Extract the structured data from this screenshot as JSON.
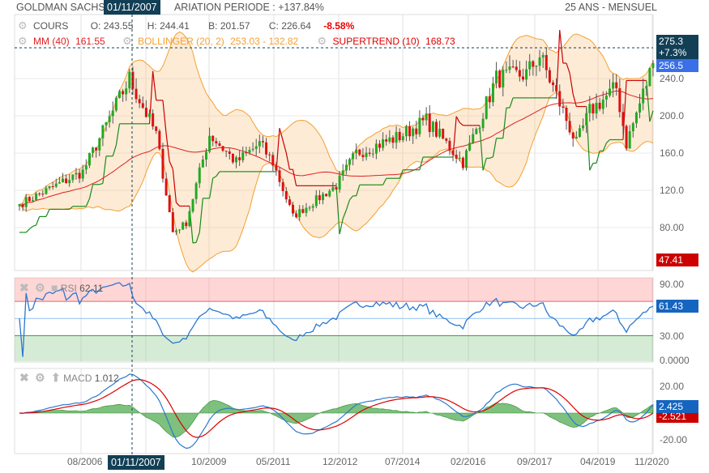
{
  "header": {
    "title_prefix": "GOLDMAN SACHS G",
    "title_suffix": "ARIATION PERIODE : +137.84%",
    "period": "25 ANS - MENSUEL",
    "crosshair_date": "01/11/2007"
  },
  "legend": {
    "cours": "COURS",
    "open": "O: 243.55",
    "high": "H: 244.41",
    "low": "B: 201.57",
    "close": "C: 226.64",
    "change": "-8.58%",
    "mm": "MM (40)",
    "mm_value": "161.55",
    "bollinger": "BOLLINGER (20, 2)",
    "bollinger_value": "253.03 - 132.82",
    "supertrend": "SUPERTREND (10)",
    "supertrend_value": "168.73"
  },
  "badges": {
    "crosshair_price": "275.3",
    "crosshair_pct": "+7.3%",
    "last_price": "256.5",
    "red_value": "47.41",
    "rsi_last": "61.43",
    "macd_last": "2.425",
    "macd_signal": "-2.521"
  },
  "rsi": {
    "label": "RSI",
    "value": "62.11"
  },
  "macd": {
    "label": "MACD",
    "value": "1.012"
  },
  "axes": {
    "price_ticks": [
      "240.0",
      "200.0",
      "160.0",
      "120.0",
      "80.00"
    ],
    "rsi_ticks": [
      "90.00",
      "30.00",
      "0.0000"
    ],
    "macd_ticks": [
      "20.00",
      "-20.00"
    ],
    "x_ticks": [
      "08/2006",
      "10/2009",
      "05/2011",
      "12/2012",
      "07/2014",
      "02/2016",
      "09/2017",
      "04/2019",
      "11/2020"
    ]
  },
  "colors": {
    "up": "#22aa22",
    "down": "#dd1111",
    "mm": "#e02020",
    "bollinger": "#f5a030",
    "supertrend": "#1a8a1a",
    "rsi": "#2b78d0",
    "accent": "#123f55"
  },
  "chart_data": {
    "type": "candlestick",
    "series_keypoints_close": [
      {
        "t": "01/2005",
        "v": 105
      },
      {
        "t": "08/2006",
        "v": 140
      },
      {
        "t": "10/2007",
        "v": 240
      },
      {
        "t": "06/2008",
        "v": 180
      },
      {
        "t": "11/2008",
        "v": 75
      },
      {
        "t": "03/2009",
        "v": 85
      },
      {
        "t": "10/2009",
        "v": 180
      },
      {
        "t": "06/2010",
        "v": 150
      },
      {
        "t": "01/2011",
        "v": 170
      },
      {
        "t": "05/2011",
        "v": 150
      },
      {
        "t": "11/2011",
        "v": 92
      },
      {
        "t": "12/2012",
        "v": 125
      },
      {
        "t": "06/2013",
        "v": 160
      },
      {
        "t": "07/2014",
        "v": 178
      },
      {
        "t": "03/2015",
        "v": 195
      },
      {
        "t": "02/2016",
        "v": 150
      },
      {
        "t": "12/2016",
        "v": 240
      },
      {
        "t": "09/2017",
        "v": 245
      },
      {
        "t": "01/2018",
        "v": 265
      },
      {
        "t": "12/2018",
        "v": 170
      },
      {
        "t": "04/2019",
        "v": 205
      },
      {
        "t": "12/2019",
        "v": 230
      },
      {
        "t": "03/2020",
        "v": 170
      },
      {
        "t": "11/2020",
        "v": 256.5
      }
    ],
    "ylim": [
      50,
      280
    ]
  }
}
